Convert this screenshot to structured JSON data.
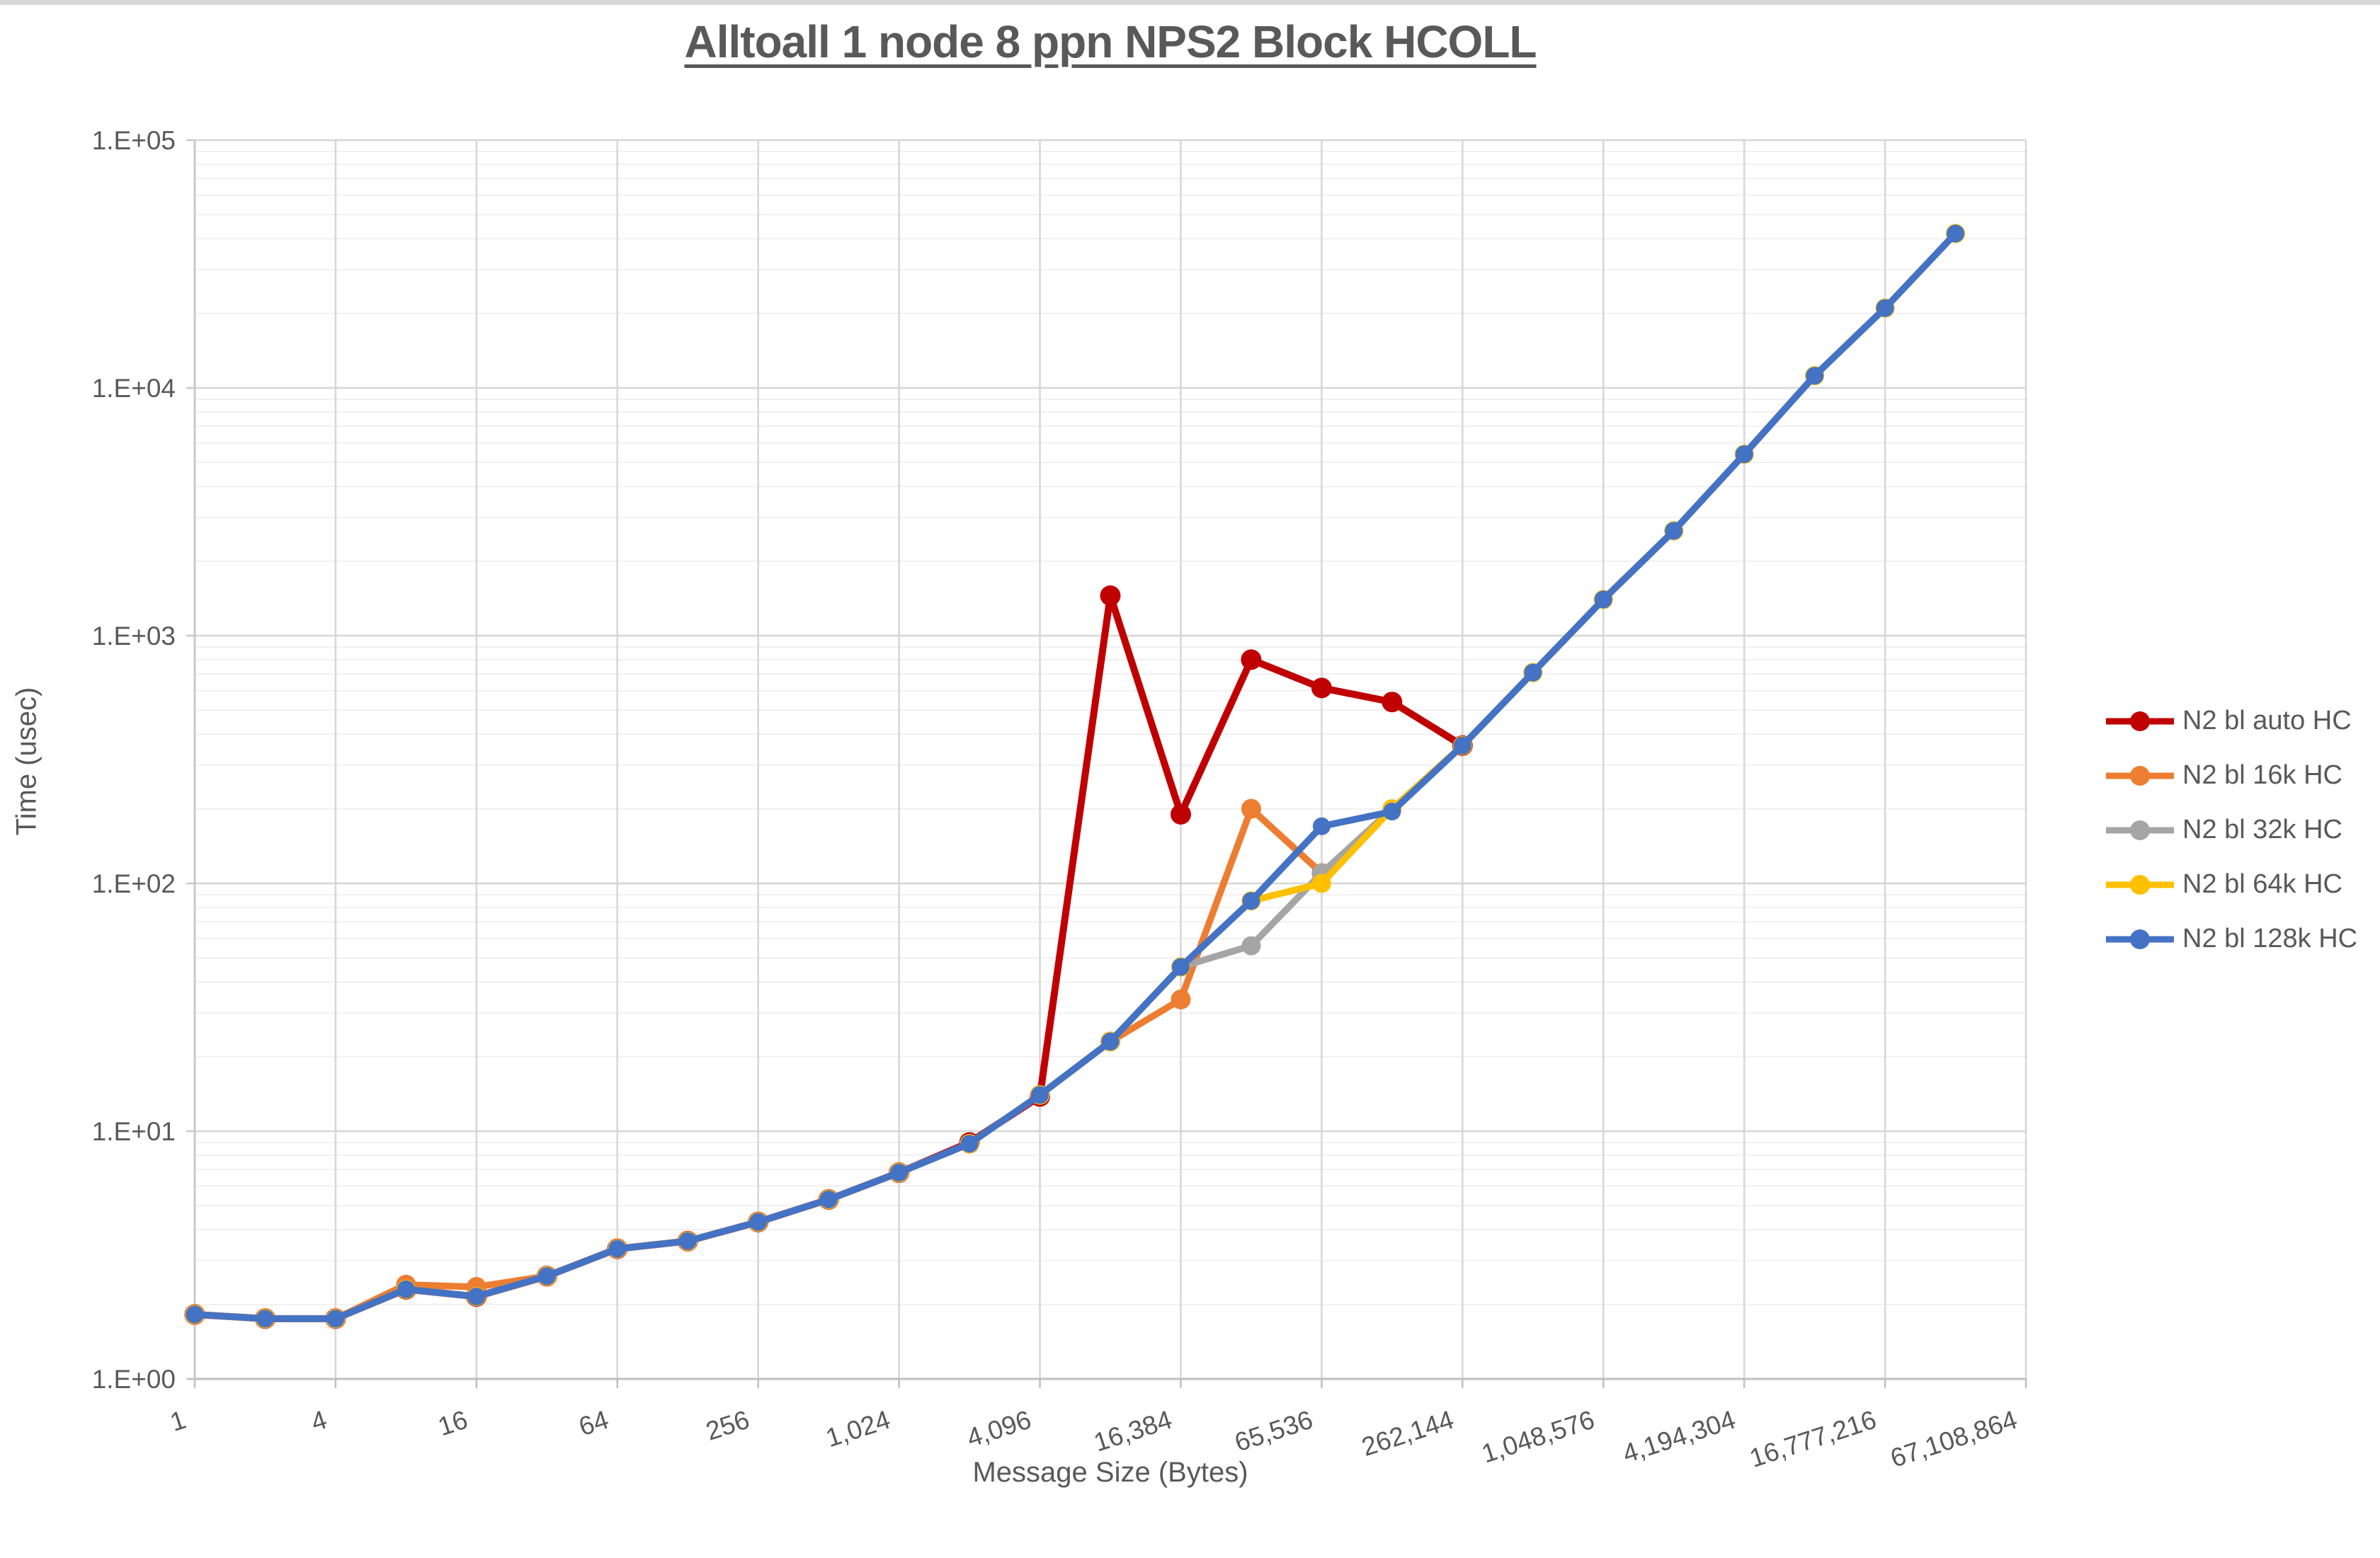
{
  "chart_data": {
    "type": "line",
    "title": "Alltoall 1 node 8 ppn NPS2 Block HCOLL",
    "xlabel": "Message Size (Bytes)",
    "ylabel": "Time (usec)",
    "x_scale": "log2",
    "y_scale": "log10",
    "x_range": [
      1,
      67108864
    ],
    "y_range": [
      1,
      100000
    ],
    "grid": {
      "major": true,
      "minor_horizontal": true,
      "minor_vertical": false
    },
    "legend_position": "right",
    "x_tick_labels": [
      "1",
      "4",
      "16",
      "64",
      "256",
      "1,024",
      "4,096",
      "16,384",
      "65,536",
      "262,144",
      "1,048,576",
      "4,194,304",
      "16,777,216",
      "67,108,864"
    ],
    "y_tick_labels": [
      "1.E+00",
      "1.E+01",
      "1.E+02",
      "1.E+03",
      "1.E+04",
      "1.E+05"
    ],
    "series": [
      {
        "name": "N2 bl auto HC",
        "color": "#C00000",
        "points": [
          [
            1,
            1.82
          ],
          [
            2,
            1.75
          ],
          [
            4,
            1.75
          ],
          [
            8,
            2.3
          ],
          [
            16,
            2.15
          ],
          [
            32,
            2.6
          ],
          [
            64,
            3.35
          ],
          [
            128,
            3.6
          ],
          [
            256,
            4.3
          ],
          [
            512,
            5.3
          ],
          [
            1024,
            6.8
          ],
          [
            2048,
            9.0
          ],
          [
            4096,
            13.8
          ],
          [
            8192,
            1450
          ],
          [
            16384,
            190
          ],
          [
            32768,
            800
          ],
          [
            65536,
            615
          ],
          [
            131072,
            540
          ],
          [
            262144,
            360
          ]
        ]
      },
      {
        "name": "N2 bl 16k HC",
        "color": "#ED7D31",
        "points": [
          [
            1,
            1.82
          ],
          [
            2,
            1.75
          ],
          [
            4,
            1.75
          ],
          [
            8,
            2.4
          ],
          [
            16,
            2.35
          ],
          [
            32,
            2.6
          ],
          [
            64,
            3.35
          ],
          [
            128,
            3.6
          ],
          [
            256,
            4.3
          ],
          [
            512,
            5.3
          ],
          [
            1024,
            6.8
          ],
          [
            2048,
            8.9
          ],
          [
            4096,
            14
          ],
          [
            8192,
            23
          ],
          [
            16384,
            34
          ],
          [
            32768,
            200
          ],
          [
            65536,
            110
          ]
        ]
      },
      {
        "name": "N2 bl 32k HC",
        "color": "#A5A5A5",
        "points": [
          [
            1,
            1.82
          ],
          [
            2,
            1.75
          ],
          [
            4,
            1.75
          ],
          [
            8,
            2.3
          ],
          [
            16,
            2.15
          ],
          [
            32,
            2.6
          ],
          [
            64,
            3.35
          ],
          [
            128,
            3.6
          ],
          [
            256,
            4.3
          ],
          [
            512,
            5.3
          ],
          [
            1024,
            6.8
          ],
          [
            2048,
            8.9
          ],
          [
            4096,
            14
          ],
          [
            8192,
            23
          ],
          [
            16384,
            46
          ],
          [
            32768,
            56
          ],
          [
            65536,
            110
          ],
          [
            131072,
            200
          ],
          [
            262144,
            360
          ],
          [
            524288,
            710
          ],
          [
            1048576,
            1400
          ],
          [
            2097152,
            2650
          ],
          [
            4194304,
            5400
          ],
          [
            8388608,
            11200
          ],
          [
            16777216,
            21000
          ],
          [
            33554432,
            42000
          ]
        ]
      },
      {
        "name": "N2 bl 64k HC",
        "color": "#FFC000",
        "points": [
          [
            1,
            1.82
          ],
          [
            2,
            1.75
          ],
          [
            4,
            1.75
          ],
          [
            8,
            2.3
          ],
          [
            16,
            2.15
          ],
          [
            32,
            2.6
          ],
          [
            64,
            3.35
          ],
          [
            128,
            3.6
          ],
          [
            256,
            4.3
          ],
          [
            512,
            5.3
          ],
          [
            1024,
            6.8
          ],
          [
            2048,
            8.9
          ],
          [
            4096,
            14
          ],
          [
            8192,
            23
          ],
          [
            16384,
            46
          ],
          [
            32768,
            85
          ],
          [
            65536,
            100
          ],
          [
            131072,
            200
          ],
          [
            262144,
            360
          ],
          [
            524288,
            710
          ],
          [
            1048576,
            1400
          ],
          [
            2097152,
            2650
          ],
          [
            4194304,
            5400
          ],
          [
            8388608,
            11200
          ],
          [
            16777216,
            21000
          ],
          [
            33554432,
            42000
          ]
        ]
      },
      {
        "name": "N2 bl 128k HC",
        "color": "#4472C4",
        "points": [
          [
            1,
            1.82
          ],
          [
            2,
            1.75
          ],
          [
            4,
            1.75
          ],
          [
            8,
            2.3
          ],
          [
            16,
            2.15
          ],
          [
            32,
            2.6
          ],
          [
            64,
            3.35
          ],
          [
            128,
            3.6
          ],
          [
            256,
            4.3
          ],
          [
            512,
            5.3
          ],
          [
            1024,
            6.8
          ],
          [
            2048,
            8.9
          ],
          [
            4096,
            14
          ],
          [
            8192,
            23
          ],
          [
            16384,
            46
          ],
          [
            32768,
            85
          ],
          [
            65536,
            170
          ],
          [
            131072,
            195
          ],
          [
            262144,
            360
          ],
          [
            524288,
            710
          ],
          [
            1048576,
            1400
          ],
          [
            2097152,
            2650
          ],
          [
            4194304,
            5400
          ],
          [
            8388608,
            11200
          ],
          [
            16777216,
            21000
          ],
          [
            33554432,
            42000
          ]
        ]
      }
    ]
  }
}
